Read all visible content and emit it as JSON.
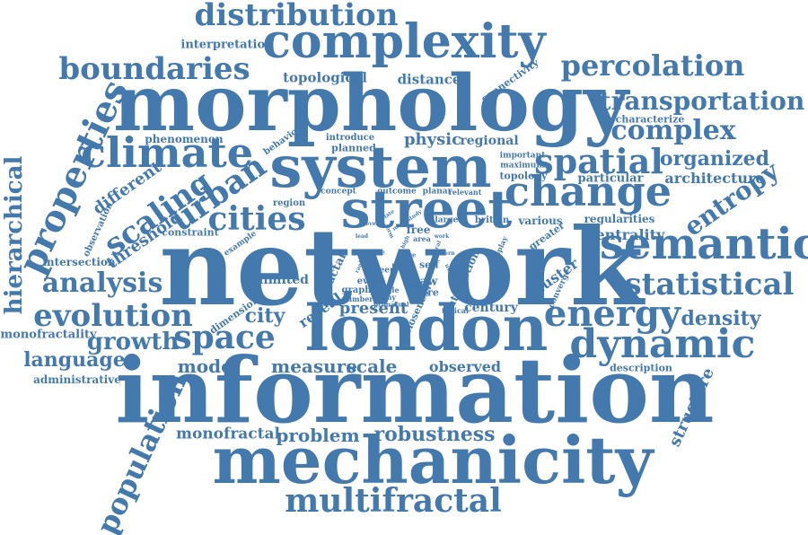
{
  "colors": {
    "word": "#4479ad",
    "background": "#ffffff"
  },
  "words": {
    "network": "network",
    "information": "information",
    "morphology": "morphology",
    "london": "london",
    "mechanicity": "mechanicity",
    "system": "system",
    "street": "street",
    "complexity": "complexity",
    "semantic": "semantic",
    "change": "change",
    "dynamic": "dynamic",
    "spatial": "spatial",
    "climate": "climate",
    "energy": "energy",
    "statistical": "statistical",
    "space": "space",
    "evolution": "evolution",
    "multifractal": "multifractal",
    "boundaries": "boundaries",
    "distribution": "distribution",
    "percolation": "percolation",
    "properties": "properties",
    "population": "population",
    "cities": "cities",
    "urban": "urban",
    "scaling": "scaling",
    "transportation": "transportation",
    "complex": "complex",
    "analysis": "analysis",
    "growth": "growth",
    "entropy": "entropy",
    "robustness": "robustness",
    "hierarchical": "hierarchical",
    "measure": "measure",
    "scale": "scale",
    "organized": "organized",
    "language": "language",
    "density": "density",
    "architecture": "architecture",
    "city": "city",
    "model": "model",
    "problem": "problem",
    "monofractal": "monofractal",
    "observed": "observed",
    "structure": "structure",
    "different": "different",
    "threshold": "threshold",
    "physic": "physic",
    "topological": "topological",
    "distance": "distance",
    "interpretation": "interpretation",
    "present": "present",
    "centrality": "centrality",
    "regularities": "regularities",
    "cluster": "cluster",
    "monofractality": "monofractality",
    "administrative": "administrative",
    "phenomenon": "phenomenon",
    "regional": "regional",
    "reveal": "reveal",
    "century": "century",
    "limited": "limited",
    "intersection": "intersection",
    "connectivity": "connectivity",
    "characterize": "characterize",
    "particular": "particular",
    "topology": "topology",
    "constraint": "constraint",
    "observation": "observation",
    "description": "description",
    "dimension": "dimension",
    "closeness": "closeness",
    "fractal": "fractal",
    "interaction": "interaction",
    "introduce": "introduce",
    "planned": "planned",
    "behaviour": "behaviour",
    "important": "important",
    "maximum": "maximum",
    "region": "region",
    "concept": "concept",
    "outcome": "outcome",
    "planar": "planar",
    "relevant": "relevant",
    "largest": "largest",
    "britain": "britain",
    "various": "various",
    "greater": "greater",
    "example": "example",
    "free": "free",
    "area": "area",
    "green": "green",
    "law": "law",
    "more": "more",
    "self": "self",
    "event": "event",
    "graph": "graph",
    "converge": "converge",
    "typical": "typical",
    "display": "display",
    "single": "single",
    "many": "many",
    "number": "number",
    "primal": "primal",
    "dual": "dual",
    "time": "time",
    "size": "size",
    "relate": "relate",
    "study": "study",
    "lead": "lead",
    "work": "work",
    "form": "form",
    "local": "local",
    "road": "road",
    "rank": "rank",
    "set": "set",
    "use": "use",
    "level": "level",
    "mean": "mean",
    "pattern": "pattern",
    "case": "case",
    "high": "high",
    "new": "new"
  }
}
